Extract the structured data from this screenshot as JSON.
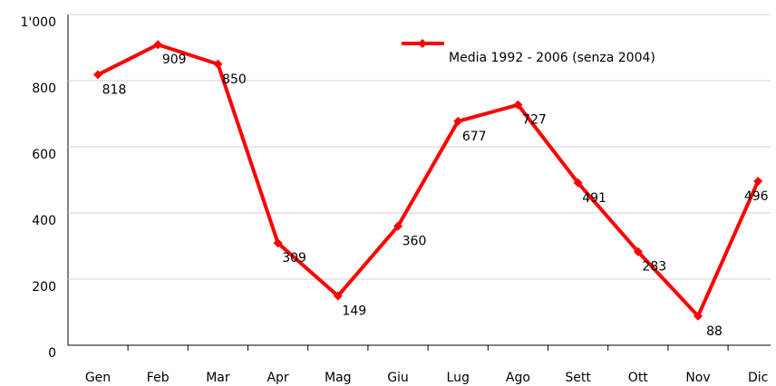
{
  "chart_data": {
    "type": "line",
    "categories": [
      "Gen",
      "Feb",
      "Mar",
      "Apr",
      "Mag",
      "Giu",
      "Lug",
      "Ago",
      "Sett",
      "Ott",
      "Nov",
      "Dic"
    ],
    "series": [
      {
        "name": "Media 1992 - 2006 (senza 2004)",
        "color": "#ff0000",
        "values": [
          818,
          909,
          850,
          309,
          149,
          360,
          677,
          727,
          491,
          283,
          88,
          496
        ]
      }
    ],
    "ylim": [
      0,
      1000
    ],
    "yticks": [
      0,
      200,
      400,
      600,
      800,
      {
        "value": 1000,
        "label": "1'000"
      }
    ],
    "grid": true,
    "legend": "top-right"
  }
}
